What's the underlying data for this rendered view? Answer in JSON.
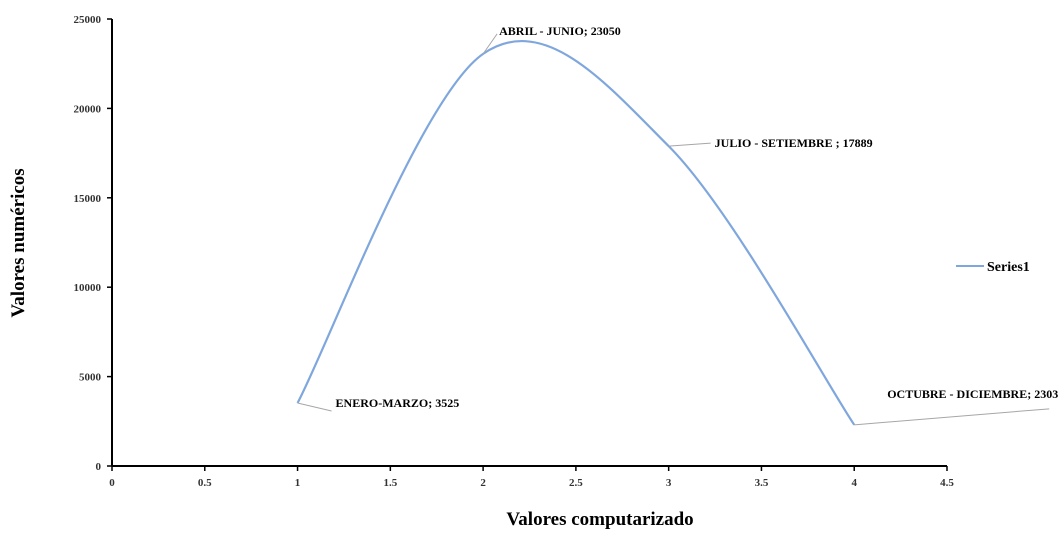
{
  "chart_data": {
    "type": "line",
    "smooth": true,
    "xlabel": "Valores computarizado",
    "ylabel": "Valores numéricos",
    "xlim": [
      0,
      4.5
    ],
    "ylim": [
      0,
      25000
    ],
    "x_ticks": [
      0,
      0.5,
      1,
      1.5,
      2,
      2.5,
      3,
      3.5,
      4,
      4.5
    ],
    "y_ticks": [
      0,
      5000,
      10000,
      15000,
      20000,
      25000
    ],
    "grid": false,
    "legend_position": "right",
    "series": [
      {
        "name": "Series1",
        "color": "#7fa7dd",
        "x": [
          1,
          2,
          3,
          4
        ],
        "y": [
          3525,
          23050,
          17889,
          2303
        ],
        "point_labels": [
          "ENERO-MARZO; 3525",
          "ABRIL - JUNIO; 23050",
          "JULIO - SETIEMBRE ; 17889",
          "OCTUBRE - DICIEMBRE; 2303"
        ]
      }
    ]
  }
}
